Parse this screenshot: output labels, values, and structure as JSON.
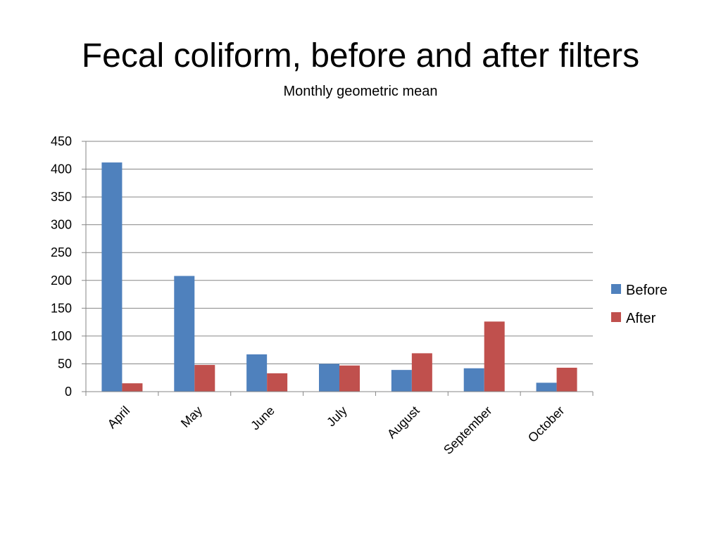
{
  "chart_data": {
    "type": "bar",
    "title": "Fecal coliform, before and after filters",
    "subtitle": "Monthly geometric mean",
    "categories": [
      "April",
      "May",
      "June",
      "July",
      "August",
      "September",
      "October"
    ],
    "series": [
      {
        "name": "Before",
        "color": "#4F81BD",
        "values": [
          412,
          208,
          67,
          50,
          39,
          42,
          16
        ]
      },
      {
        "name": "After",
        "color": "#C0504D",
        "values": [
          15,
          48,
          33,
          47,
          69,
          126,
          43
        ]
      }
    ],
    "xlabel": "",
    "ylabel": "",
    "ylim": [
      0,
      450
    ],
    "yticks": [
      0,
      50,
      100,
      150,
      200,
      250,
      300,
      350,
      400,
      450
    ],
    "grid": true,
    "legend_position": "right"
  }
}
